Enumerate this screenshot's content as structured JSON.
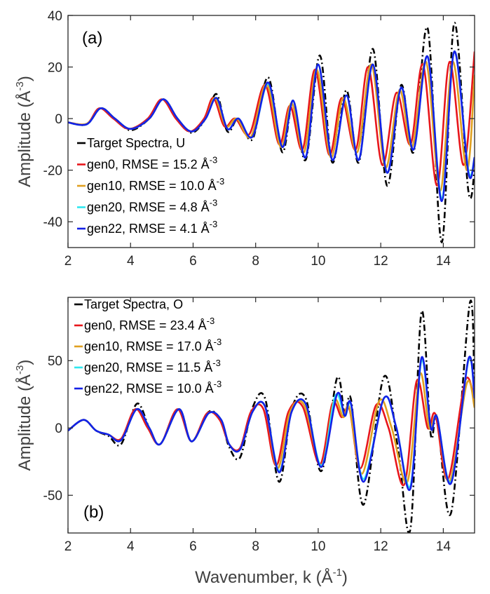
{
  "colors": {
    "target": "#000000",
    "gen0": "#e8161b",
    "gen10": "#e0a020",
    "gen20": "#2ee8f0",
    "gen22": "#1420e6",
    "axis": "#262626"
  },
  "chart_data": [
    {
      "type": "line",
      "panel_label": "(a)",
      "xlabel": "",
      "ylabel": "Amplitude (Å",
      "ylabel_sup": "-3",
      "ylabel_close": ")",
      "xlim": [
        2,
        15
      ],
      "ylim": [
        -50,
        40
      ],
      "xticks": [
        2,
        4,
        6,
        8,
        10,
        12,
        14
      ],
      "yticks": [
        -40,
        -20,
        0,
        20,
        40
      ],
      "legend_position": "lower-left",
      "legend": [
        {
          "key": "target",
          "text": "Target Spectra, U",
          "sup": ""
        },
        {
          "key": "gen0",
          "text": "gen0, RMSE = 15.2 Å",
          "sup": "-3"
        },
        {
          "key": "gen10",
          "text": "gen10, RMSE = 10.0 Å",
          "sup": "-3"
        },
        {
          "key": "gen20",
          "text": "gen20, RMSE = 4.8 Å",
          "sup": "-3"
        },
        {
          "key": "gen22",
          "text": "gen22, RMSE = 4.1 Å",
          "sup": "-3"
        }
      ],
      "series": [
        {
          "name": "Target Spectra, U",
          "key": "target",
          "x": [
            2.0,
            2.6,
            3.05,
            3.5,
            4.0,
            4.6,
            5.05,
            5.5,
            5.95,
            6.4,
            6.75,
            7.1,
            7.45,
            7.9,
            8.4,
            8.85,
            9.2,
            9.6,
            10.05,
            10.45,
            10.9,
            11.3,
            11.75,
            12.2,
            12.65,
            13.05,
            13.5,
            13.95,
            14.35,
            14.8,
            15.0
          ],
          "y": [
            -1.5,
            -2.2,
            4.0,
            0.0,
            -4.5,
            0.0,
            7.5,
            0.0,
            -5.5,
            0.0,
            9.5,
            -5.0,
            0.0,
            -8.0,
            16.0,
            -13.0,
            7.0,
            -16.0,
            24.5,
            -17.0,
            11.0,
            -17.0,
            27.0,
            -26.0,
            13.0,
            -13.0,
            35.0,
            -48.0,
            37.0,
            -28.0,
            -20.0
          ]
        },
        {
          "name": "gen0, RMSE = 15.2 Å-3",
          "key": "gen0",
          "x": [
            2.0,
            2.6,
            3.0,
            3.45,
            3.95,
            4.55,
            5.0,
            5.45,
            5.9,
            6.35,
            6.65,
            7.0,
            7.35,
            7.8,
            8.3,
            8.75,
            9.1,
            9.5,
            9.9,
            10.35,
            10.75,
            11.2,
            11.6,
            12.05,
            12.5,
            12.95,
            13.35,
            13.8,
            14.2,
            14.65,
            15.0
          ],
          "y": [
            -1.5,
            -2.0,
            4.0,
            0.0,
            -4.0,
            0.0,
            7.5,
            0.0,
            -5.0,
            0.0,
            8.0,
            -3.0,
            0.0,
            -6.0,
            13.0,
            -10.0,
            5.0,
            -12.0,
            19.0,
            -14.0,
            8.0,
            -12.0,
            20.0,
            -18.0,
            10.0,
            -10.0,
            21.0,
            -26.0,
            22.0,
            -18.0,
            26.0
          ]
        },
        {
          "name": "gen10, RMSE = 10.0 Å-3",
          "key": "gen10",
          "x": [
            2.0,
            2.6,
            3.05,
            3.5,
            4.0,
            4.6,
            5.05,
            5.5,
            5.95,
            6.4,
            6.7,
            7.05,
            7.4,
            7.85,
            8.35,
            8.8,
            9.15,
            9.55,
            9.95,
            10.4,
            10.8,
            11.25,
            11.7,
            12.15,
            12.6,
            13.0,
            13.45,
            13.9,
            14.3,
            14.75,
            15.0
          ],
          "y": [
            -1.5,
            -2.0,
            4.0,
            0.0,
            -4.0,
            0.0,
            7.5,
            0.0,
            -5.0,
            0.0,
            8.0,
            -3.0,
            0.0,
            -7.0,
            13.5,
            -11.0,
            6.0,
            -13.0,
            19.0,
            -15.0,
            8.0,
            -13.0,
            21.0,
            -19.0,
            11.0,
            -11.0,
            22.0,
            -28.0,
            22.0,
            -20.0,
            17.0
          ]
        },
        {
          "name": "gen20, RMSE = 4.8 Å-3",
          "key": "gen20",
          "x": [
            2.0,
            2.6,
            3.05,
            3.5,
            4.0,
            4.6,
            5.05,
            5.5,
            5.95,
            6.4,
            6.75,
            7.1,
            7.45,
            7.9,
            8.4,
            8.85,
            9.2,
            9.6,
            10.0,
            10.45,
            10.9,
            11.3,
            11.75,
            12.2,
            12.65,
            13.05,
            13.5,
            13.95,
            14.35,
            14.8,
            15.0
          ],
          "y": [
            -1.5,
            -2.2,
            4.0,
            0.0,
            -4.0,
            0.0,
            7.5,
            0.0,
            -5.0,
            0.0,
            8.0,
            -4.0,
            0.0,
            -7.0,
            13.5,
            -11.0,
            7.0,
            -15.0,
            21.0,
            -16.0,
            9.0,
            -16.0,
            21.0,
            -21.0,
            12.0,
            -12.0,
            24.0,
            -31.0,
            26.0,
            -20.0,
            -15.0
          ]
        },
        {
          "name": "gen22, RMSE = 4.1 Å-3",
          "key": "gen22",
          "x": [
            2.0,
            2.6,
            3.05,
            3.5,
            4.0,
            4.6,
            5.05,
            5.5,
            5.95,
            6.4,
            6.75,
            7.1,
            7.45,
            7.9,
            8.4,
            8.85,
            9.2,
            9.6,
            10.0,
            10.45,
            10.9,
            11.3,
            11.75,
            12.2,
            12.65,
            13.05,
            13.5,
            13.95,
            14.35,
            14.8,
            15.0
          ],
          "y": [
            -1.5,
            -2.2,
            4.0,
            0.0,
            -4.0,
            0.0,
            7.5,
            0.0,
            -5.0,
            0.0,
            8.0,
            -4.0,
            0.0,
            -7.0,
            14.0,
            -11.0,
            7.0,
            -15.0,
            21.0,
            -16.0,
            9.0,
            -16.0,
            21.0,
            -21.0,
            12.0,
            -12.0,
            24.0,
            -32.0,
            26.0,
            -21.0,
            -15.0
          ]
        }
      ]
    },
    {
      "type": "line",
      "panel_label": "(b)",
      "xlabel": "Wavenumber, k (Å",
      "xlabel_sup": "-1",
      "xlabel_close": ")",
      "ylabel": "Amplitude (Å",
      "ylabel_sup": "-3",
      "ylabel_close": ")",
      "xlim": [
        2,
        15
      ],
      "ylim": [
        -78,
        97
      ],
      "xticks": [
        2,
        4,
        6,
        8,
        10,
        12,
        14
      ],
      "yticks": [
        -50,
        0,
        50
      ],
      "legend_position": "top-left",
      "legend": [
        {
          "key": "target",
          "text": "Target Spectra, O",
          "sup": ""
        },
        {
          "key": "gen0",
          "text": "gen0, RMSE = 23.4 Å",
          "sup": "-3"
        },
        {
          "key": "gen10",
          "text": "gen10, RMSE = 17.0 Å",
          "sup": "-3"
        },
        {
          "key": "gen20",
          "text": "gen20, RMSE = 11.5 Å",
          "sup": "-3"
        },
        {
          "key": "gen22",
          "text": "gen22, RMSE = 10.0 Å",
          "sup": "-3"
        }
      ],
      "series": [
        {
          "name": "Target Spectra, O",
          "key": "target",
          "x": [
            2.0,
            2.5,
            2.9,
            3.3,
            3.7,
            4.2,
            4.6,
            4.95,
            5.55,
            5.95,
            6.5,
            6.9,
            7.15,
            7.5,
            7.9,
            8.3,
            8.75,
            9.15,
            9.6,
            10.1,
            10.6,
            10.85,
            11.05,
            11.45,
            12.1,
            12.55,
            12.95,
            13.3,
            13.6,
            13.8,
            14.25,
            14.85,
            15.0
          ],
          "y": [
            -2.0,
            6.0,
            -2.0,
            -6.0,
            -12.0,
            18.0,
            0.0,
            -12.0,
            14.0,
            -10.0,
            12.0,
            5.0,
            -14.0,
            -22.0,
            15.0,
            22.0,
            -40.0,
            14.0,
            22.0,
            -32.0,
            37.0,
            10.0,
            21.0,
            -57.0,
            38.0,
            -15.0,
            -75.0,
            86.0,
            -5.0,
            8.0,
            -63.0,
            93.0,
            20.0
          ]
        },
        {
          "name": "gen0, RMSE = 23.4 Å-3",
          "key": "gen0",
          "x": [
            2.0,
            2.5,
            2.9,
            3.3,
            3.7,
            4.15,
            4.55,
            4.95,
            5.5,
            5.95,
            6.45,
            6.85,
            7.15,
            7.5,
            7.85,
            8.25,
            8.65,
            9.05,
            9.5,
            10.05,
            10.45,
            10.75,
            11.0,
            11.35,
            11.85,
            12.25,
            12.75,
            13.15,
            13.5,
            13.75,
            14.15,
            14.7,
            15.0
          ],
          "y": [
            -2.0,
            6.0,
            -2.0,
            -5.0,
            -8.0,
            14.0,
            0.0,
            -12.0,
            14.0,
            -10.0,
            11.0,
            6.0,
            -12.0,
            -15.0,
            12.0,
            14.0,
            -28.0,
            12.0,
            16.0,
            -27.0,
            18.0,
            8.0,
            14.0,
            -30.0,
            17.0,
            0.0,
            -42.0,
            35.0,
            0.0,
            10.0,
            -38.0,
            35.0,
            20.0
          ]
        },
        {
          "name": "gen10, RMSE = 17.0 Å-3",
          "key": "gen10",
          "x": [
            2.0,
            2.5,
            2.9,
            3.3,
            3.7,
            4.2,
            4.6,
            4.95,
            5.55,
            5.95,
            6.5,
            6.9,
            7.15,
            7.5,
            7.9,
            8.3,
            8.7,
            9.1,
            9.55,
            10.1,
            10.5,
            10.8,
            11.0,
            11.4,
            11.95,
            12.35,
            12.85,
            13.25,
            13.55,
            13.8,
            14.2,
            14.75,
            15.0
          ],
          "y": [
            -2.0,
            6.0,
            -2.0,
            -5.0,
            -9.0,
            14.0,
            0.0,
            -12.0,
            14.0,
            -10.0,
            11.0,
            6.0,
            -12.0,
            -16.0,
            12.0,
            16.0,
            -30.0,
            12.0,
            17.0,
            -28.0,
            20.0,
            8.0,
            15.0,
            -34.0,
            20.0,
            0.0,
            -40.0,
            40.0,
            0.0,
            8.0,
            -40.0,
            33.0,
            15.0
          ]
        },
        {
          "name": "gen20, RMSE = 11.5 Å-3",
          "key": "gen20",
          "x": [
            2.0,
            2.5,
            2.9,
            3.3,
            3.7,
            4.2,
            4.6,
            4.95,
            5.55,
            5.95,
            6.5,
            6.9,
            7.15,
            7.5,
            7.9,
            8.3,
            8.75,
            9.15,
            9.6,
            10.1,
            10.55,
            10.85,
            11.05,
            11.45,
            12.1,
            12.5,
            12.95,
            13.3,
            13.6,
            13.8,
            14.25,
            14.8,
            15.0
          ],
          "y": [
            -2.0,
            6.0,
            -2.0,
            -5.0,
            -9.0,
            14.0,
            0.0,
            -12.0,
            14.0,
            -10.0,
            11.0,
            6.0,
            -12.0,
            -16.0,
            12.0,
            16.0,
            -32.0,
            12.0,
            18.0,
            -28.0,
            24.0,
            9.0,
            17.0,
            -38.0,
            22.0,
            0.0,
            -43.0,
            50.0,
            0.0,
            8.0,
            -40.0,
            50.0,
            22.0
          ]
        },
        {
          "name": "gen22, RMSE = 10.0 Å-3",
          "key": "gen22",
          "x": [
            2.0,
            2.5,
            2.9,
            3.3,
            3.7,
            4.2,
            4.6,
            4.95,
            5.55,
            5.95,
            6.5,
            6.9,
            7.15,
            7.5,
            7.9,
            8.3,
            8.75,
            9.15,
            9.6,
            10.1,
            10.6,
            10.85,
            11.05,
            11.45,
            12.1,
            12.5,
            12.95,
            13.3,
            13.6,
            13.8,
            14.25,
            14.8,
            15.0
          ],
          "y": [
            -2.0,
            6.0,
            -2.0,
            -5.0,
            -9.0,
            14.0,
            0.0,
            -12.0,
            14.0,
            -10.0,
            11.0,
            6.0,
            -12.0,
            -16.0,
            12.0,
            16.0,
            -33.0,
            12.0,
            18.0,
            -29.0,
            25.0,
            9.0,
            18.0,
            -40.0,
            22.0,
            0.0,
            -45.0,
            52.0,
            0.0,
            8.0,
            -41.0,
            51.0,
            22.0
          ]
        }
      ]
    }
  ]
}
